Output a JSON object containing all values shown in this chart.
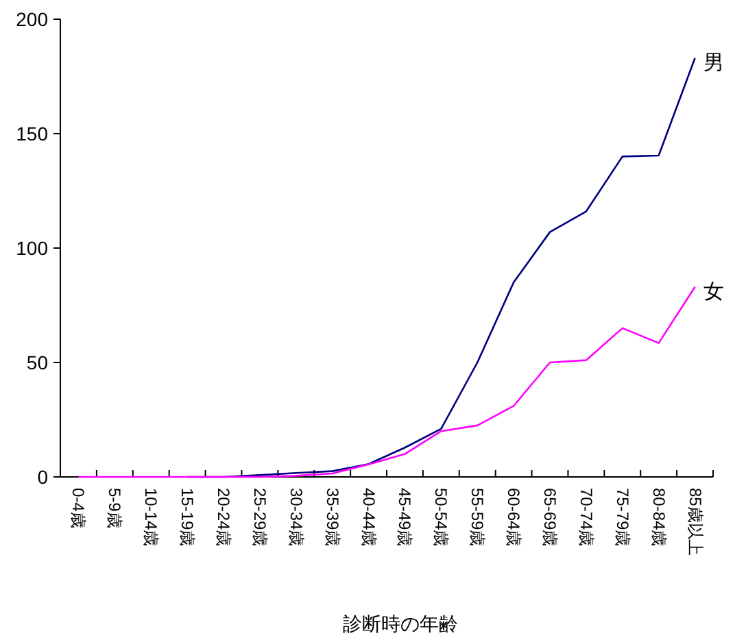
{
  "chart_data": {
    "type": "line",
    "xlabel": "診断時の年齢",
    "categories": [
      "0-4歳",
      "5-9歳",
      "10-14歳",
      "15-19歳",
      "20-24歳",
      "25-29歳",
      "30-34歳",
      "35-39歳",
      "40-44歳",
      "45-49歳",
      "50-54歳",
      "55-59歳",
      "60-64歳",
      "65-69歳",
      "70-74歳",
      "75-79歳",
      "80-84歳",
      "85歳以上"
    ],
    "series": [
      {
        "name": "男",
        "color": "#000080",
        "values": [
          null,
          null,
          null,
          0,
          0,
          0.8,
          1.7,
          2.5,
          5.6,
          12.8,
          21,
          50,
          85,
          107,
          116,
          140,
          140.4,
          183
        ]
      },
      {
        "name": "女",
        "color": "#ff00ff",
        "values": [
          0,
          0,
          0,
          0,
          0,
          0,
          0.5,
          1.5,
          5.5,
          10,
          20,
          22.5,
          31,
          50,
          51,
          65,
          58.5,
          83
        ]
      }
    ],
    "ylim": [
      0,
      200
    ],
    "yticks": [
      0,
      50,
      100,
      150,
      200
    ],
    "grid": false,
    "legend": false,
    "marker": "none",
    "line_style": "solid"
  }
}
